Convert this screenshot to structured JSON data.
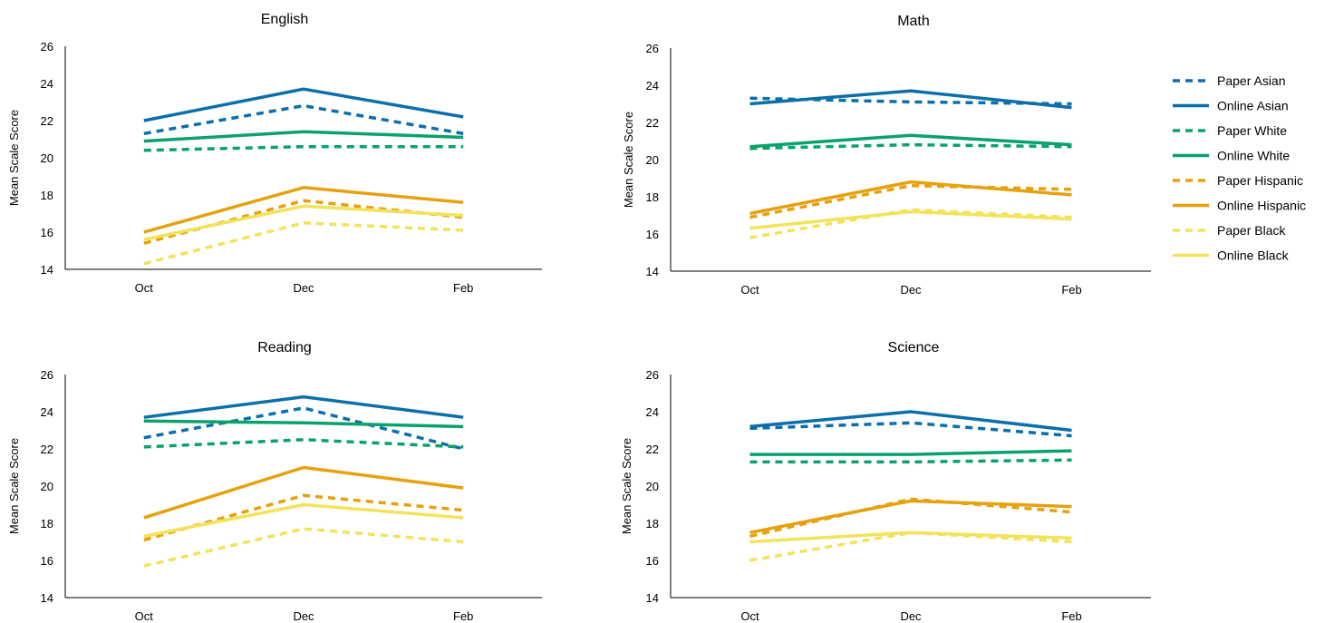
{
  "chart_data": [
    {
      "type": "line",
      "title": "English",
      "xlabel": "",
      "ylabel": "Mean Scale Score",
      "categories": [
        "Oct",
        "Dec",
        "Feb"
      ],
      "ylim": [
        14,
        26
      ],
      "yticks": [
        14,
        16,
        18,
        20,
        22,
        24,
        26
      ],
      "series": [
        {
          "name": "Paper Asian",
          "values": [
            21.3,
            22.8,
            21.3
          ]
        },
        {
          "name": "Online Asian",
          "values": [
            22.0,
            23.7,
            22.2
          ]
        },
        {
          "name": "Paper White",
          "values": [
            20.4,
            20.6,
            20.6
          ]
        },
        {
          "name": "Online White",
          "values": [
            20.9,
            21.4,
            21.1
          ]
        },
        {
          "name": "Paper Hispanic",
          "values": [
            15.4,
            17.7,
            16.8
          ]
        },
        {
          "name": "Online Hispanic",
          "values": [
            16.0,
            18.4,
            17.6
          ]
        },
        {
          "name": "Paper Black",
          "values": [
            14.3,
            16.5,
            16.1
          ]
        },
        {
          "name": "Online Black",
          "values": [
            15.6,
            17.4,
            16.9
          ]
        }
      ]
    },
    {
      "type": "line",
      "title": "Math",
      "xlabel": "",
      "ylabel": "Mean Scale Score",
      "categories": [
        "Oct",
        "Dec",
        "Feb"
      ],
      "ylim": [
        14,
        26
      ],
      "yticks": [
        14,
        16,
        18,
        20,
        22,
        24,
        26
      ],
      "series": [
        {
          "name": "Paper Asian",
          "values": [
            23.3,
            23.1,
            23.0
          ]
        },
        {
          "name": "Online Asian",
          "values": [
            23.0,
            23.7,
            22.8
          ]
        },
        {
          "name": "Paper White",
          "values": [
            20.6,
            20.8,
            20.7
          ]
        },
        {
          "name": "Online White",
          "values": [
            20.7,
            21.3,
            20.8
          ]
        },
        {
          "name": "Paper Hispanic",
          "values": [
            16.9,
            18.6,
            18.4
          ]
        },
        {
          "name": "Online Hispanic",
          "values": [
            17.1,
            18.8,
            18.1
          ]
        },
        {
          "name": "Paper Black",
          "values": [
            15.8,
            17.3,
            16.9
          ]
        },
        {
          "name": "Online Black",
          "values": [
            16.3,
            17.2,
            16.8
          ]
        }
      ]
    },
    {
      "type": "line",
      "title": "Reading",
      "xlabel": "",
      "ylabel": "Mean Scale Score",
      "categories": [
        "Oct",
        "Dec",
        "Feb"
      ],
      "ylim": [
        14,
        26
      ],
      "yticks": [
        14,
        16,
        18,
        20,
        22,
        24,
        26
      ],
      "series": [
        {
          "name": "Paper Asian",
          "values": [
            22.6,
            24.2,
            22.0
          ]
        },
        {
          "name": "Online Asian",
          "values": [
            23.7,
            24.8,
            23.7
          ]
        },
        {
          "name": "Paper White",
          "values": [
            22.1,
            22.5,
            22.1
          ]
        },
        {
          "name": "Online White",
          "values": [
            23.5,
            23.4,
            23.2
          ]
        },
        {
          "name": "Paper Hispanic",
          "values": [
            17.1,
            19.5,
            18.7
          ]
        },
        {
          "name": "Online Hispanic",
          "values": [
            18.3,
            21.0,
            19.9
          ]
        },
        {
          "name": "Paper Black",
          "values": [
            15.7,
            17.7,
            17.0
          ]
        },
        {
          "name": "Online Black",
          "values": [
            17.3,
            19.0,
            18.3
          ]
        }
      ]
    },
    {
      "type": "line",
      "title": "Science",
      "xlabel": "",
      "ylabel": "Mean Scale Score",
      "categories": [
        "Oct",
        "Dec",
        "Feb"
      ],
      "ylim": [
        14,
        26
      ],
      "yticks": [
        14,
        16,
        18,
        20,
        22,
        24,
        26
      ],
      "series": [
        {
          "name": "Paper Asian",
          "values": [
            23.1,
            23.4,
            22.7
          ]
        },
        {
          "name": "Online Asian",
          "values": [
            23.2,
            24.0,
            23.0
          ]
        },
        {
          "name": "Paper White",
          "values": [
            21.3,
            21.3,
            21.4
          ]
        },
        {
          "name": "Online White",
          "values": [
            21.7,
            21.7,
            21.9
          ]
        },
        {
          "name": "Paper Hispanic",
          "values": [
            17.3,
            19.3,
            18.6
          ]
        },
        {
          "name": "Online Hispanic",
          "values": [
            17.5,
            19.2,
            18.9
          ]
        },
        {
          "name": "Paper Black",
          "values": [
            16.0,
            17.5,
            17.0
          ]
        },
        {
          "name": "Online Black",
          "values": [
            17.0,
            17.5,
            17.2
          ]
        }
      ]
    }
  ],
  "legend": {
    "placement": "right",
    "items": [
      {
        "name": "Paper Asian",
        "color": "#0b6fab",
        "dashed": true
      },
      {
        "name": "Online Asian",
        "color": "#0b6fab",
        "dashed": false
      },
      {
        "name": "Paper White",
        "color": "#0aa26b",
        "dashed": true
      },
      {
        "name": "Online White",
        "color": "#0aa26b",
        "dashed": false
      },
      {
        "name": "Paper Hispanic",
        "color": "#e6a10c",
        "dashed": true
      },
      {
        "name": "Online Hispanic",
        "color": "#e6a10c",
        "dashed": false
      },
      {
        "name": "Paper Black",
        "color": "#f2e35a",
        "dashed": true
      },
      {
        "name": "Online Black",
        "color": "#f2e35a",
        "dashed": false
      }
    ]
  }
}
